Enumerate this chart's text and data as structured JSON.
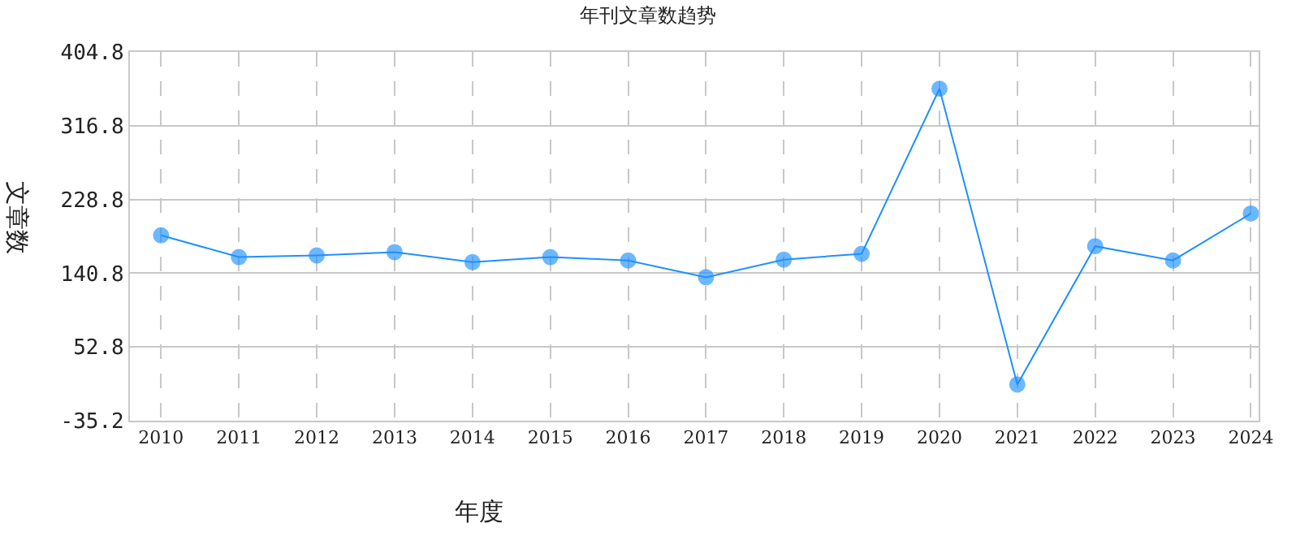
{
  "chart_data": {
    "type": "line",
    "title": "年刊文章数趋势",
    "xlabel": "年度",
    "ylabel": "文章数",
    "categories": [
      "2010",
      "2011",
      "2012",
      "2013",
      "2014",
      "2015",
      "2016",
      "2017",
      "2018",
      "2019",
      "2020",
      "2021",
      "2022",
      "2023",
      "2024"
    ],
    "series": [
      {
        "color": "#1e90ff",
        "values": [
          186,
          160,
          162,
          166,
          154,
          160,
          156,
          136,
          157,
          164,
          361,
          8,
          173,
          156,
          212
        ]
      }
    ],
    "ylim": [
      -35.2,
      404.8
    ],
    "yticks": [
      -35.2,
      52.8,
      140.8,
      228.8,
      316.8,
      404.8
    ],
    "grid": true,
    "marker": "circle",
    "line_style": "solid"
  }
}
